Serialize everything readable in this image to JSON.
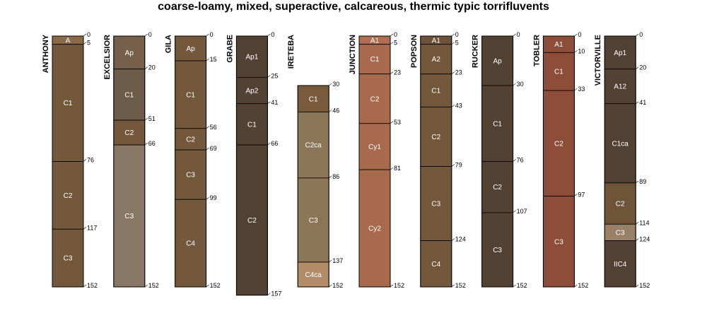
{
  "title": "coarse-loamy, mixed, superactive, calcareous, thermic typic torrifluvents",
  "profiles": [
    {
      "name": "ANTHONY",
      "horizons": [
        {
          "name": "A",
          "top": 0,
          "bottom": 5,
          "color": "#8a6a48"
        },
        {
          "name": "C1",
          "top": 5,
          "bottom": 76,
          "color": "#74583c"
        },
        {
          "name": "C2",
          "top": 76,
          "bottom": 117,
          "color": "#74583c"
        },
        {
          "name": "C3",
          "top": 117,
          "bottom": 152,
          "color": "#74583c"
        }
      ]
    },
    {
      "name": "EXCELSIOR",
      "horizons": [
        {
          "name": "Ap",
          "top": 0,
          "bottom": 20,
          "color": "#76604a"
        },
        {
          "name": "C1",
          "top": 20,
          "bottom": 51,
          "color": "#6e5c4a"
        },
        {
          "name": "C2",
          "top": 51,
          "bottom": 66,
          "color": "#74583c"
        },
        {
          "name": "C3",
          "top": 66,
          "bottom": 152,
          "color": "#8a7866"
        }
      ]
    },
    {
      "name": "GILA",
      "horizons": [
        {
          "name": "Ap",
          "top": 0,
          "bottom": 15,
          "color": "#74583c"
        },
        {
          "name": "C1",
          "top": 15,
          "bottom": 56,
          "color": "#74583c"
        },
        {
          "name": "C2",
          "top": 56,
          "bottom": 69,
          "color": "#74583c"
        },
        {
          "name": "C3",
          "top": 69,
          "bottom": 99,
          "color": "#74583c"
        },
        {
          "name": "C4",
          "top": 99,
          "bottom": 152,
          "color": "#74583c"
        }
      ]
    },
    {
      "name": "GRABE",
      "horizons": [
        {
          "name": "Ap1",
          "top": 0,
          "bottom": 25,
          "color": "#534233"
        },
        {
          "name": "Ap2",
          "top": 25,
          "bottom": 41,
          "color": "#534233"
        },
        {
          "name": "C1",
          "top": 41,
          "bottom": 66,
          "color": "#534233"
        },
        {
          "name": "C2",
          "top": 66,
          "bottom": 157,
          "color": "#534233"
        }
      ]
    },
    {
      "name": "IRETEBA",
      "horizons": [
        {
          "name": "C1",
          "top": 30,
          "bottom": 46,
          "color": "#7a5a3c"
        },
        {
          "name": "C2ca",
          "top": 46,
          "bottom": 86,
          "color": "#8c7658"
        },
        {
          "name": "C3",
          "top": 86,
          "bottom": 137,
          "color": "#8c7658"
        },
        {
          "name": "C4ca",
          "top": 137,
          "bottom": 152,
          "color": "#b38c6a"
        }
      ]
    },
    {
      "name": "JUNCTION",
      "horizons": [
        {
          "name": "A1",
          "top": 0,
          "bottom": 5,
          "color": "#b06e52"
        },
        {
          "name": "C1",
          "top": 5,
          "bottom": 23,
          "color": "#a86a4c"
        },
        {
          "name": "C2",
          "top": 23,
          "bottom": 53,
          "color": "#a86a4c"
        },
        {
          "name": "Cy1",
          "top": 53,
          "bottom": 81,
          "color": "#a86a4c"
        },
        {
          "name": "Cy2",
          "top": 81,
          "bottom": 152,
          "color": "#a86a4c"
        }
      ]
    },
    {
      "name": "POPSON",
      "horizons": [
        {
          "name": "A1",
          "top": 0,
          "bottom": 5,
          "color": "#6c5238"
        },
        {
          "name": "A2",
          "top": 5,
          "bottom": 23,
          "color": "#74583c"
        },
        {
          "name": "C1",
          "top": 23,
          "bottom": 43,
          "color": "#74583c"
        },
        {
          "name": "C2",
          "top": 43,
          "bottom": 79,
          "color": "#74583c"
        },
        {
          "name": "C3",
          "top": 79,
          "bottom": 124,
          "color": "#74583c"
        },
        {
          "name": "C4",
          "top": 124,
          "bottom": 152,
          "color": "#74583c"
        }
      ]
    },
    {
      "name": "RUCKER",
      "horizons": [
        {
          "name": "Ap",
          "top": 0,
          "bottom": 30,
          "color": "#534233"
        },
        {
          "name": "C1",
          "top": 30,
          "bottom": 76,
          "color": "#534233"
        },
        {
          "name": "C2",
          "top": 76,
          "bottom": 107,
          "color": "#534233"
        },
        {
          "name": "C3",
          "top": 107,
          "bottom": 152,
          "color": "#534233"
        }
      ]
    },
    {
      "name": "TOBLER",
      "horizons": [
        {
          "name": "A1",
          "top": 0,
          "bottom": 10,
          "color": "#8c4e38"
        },
        {
          "name": "C1",
          "top": 10,
          "bottom": 33,
          "color": "#8c4e38"
        },
        {
          "name": "C2",
          "top": 33,
          "bottom": 97,
          "color": "#8c4e38"
        },
        {
          "name": "C3",
          "top": 97,
          "bottom": 152,
          "color": "#8c4e38"
        }
      ]
    },
    {
      "name": "VICTORVILLE",
      "horizons": [
        {
          "name": "Ap1",
          "top": 0,
          "bottom": 20,
          "color": "#534233"
        },
        {
          "name": "A12",
          "top": 20,
          "bottom": 41,
          "color": "#534233"
        },
        {
          "name": "C1ca",
          "top": 41,
          "bottom": 89,
          "color": "#534233"
        },
        {
          "name": "C2",
          "top": 89,
          "bottom": 114,
          "color": "#6e5438"
        },
        {
          "name": "C3",
          "top": 114,
          "bottom": 124,
          "color": "#9a8066"
        },
        {
          "name": "IIC4",
          "top": 124,
          "bottom": 152,
          "color": "#534233"
        }
      ]
    }
  ]
}
